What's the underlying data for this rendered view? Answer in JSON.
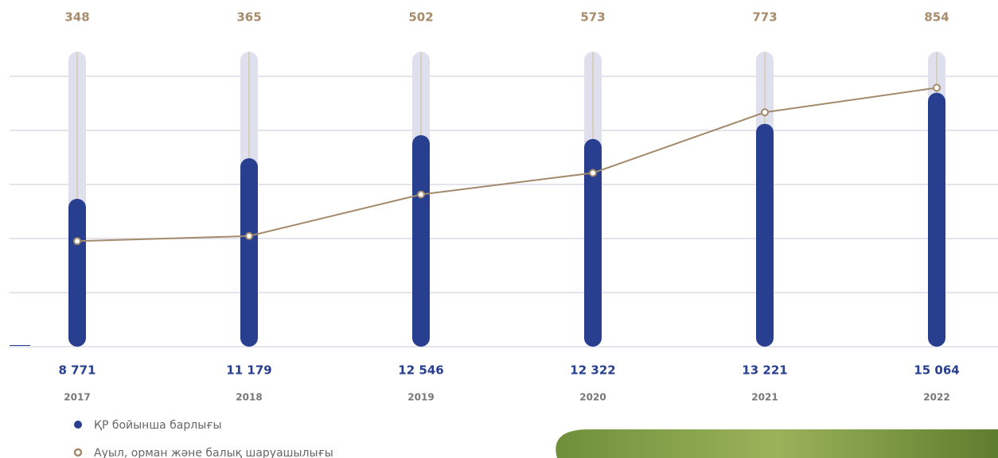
{
  "chart_data": {
    "type": "bar",
    "categories": [
      "2017",
      "2018",
      "2019",
      "2020",
      "2021",
      "2022"
    ],
    "series": [
      {
        "name": "ҚР бойынша барлығы",
        "color": "#283f8f",
        "values": [
          8771,
          11179,
          12546,
          12322,
          13221,
          15064
        ],
        "value_labels": [
          "8 771",
          "11 179",
          "12 546",
          "12 322",
          "13 221",
          "15 064"
        ]
      },
      {
        "name": "Ауыл, орман және балық шаруашылығы",
        "color": "#a38a6c",
        "type": "line",
        "axis": "y2",
        "values": [
          348,
          365,
          502,
          573,
          773,
          854
        ]
      }
    ],
    "ylim": [
      0,
      17500
    ],
    "y2lim": [
      0,
      973
    ],
    "grid": true
  }
}
